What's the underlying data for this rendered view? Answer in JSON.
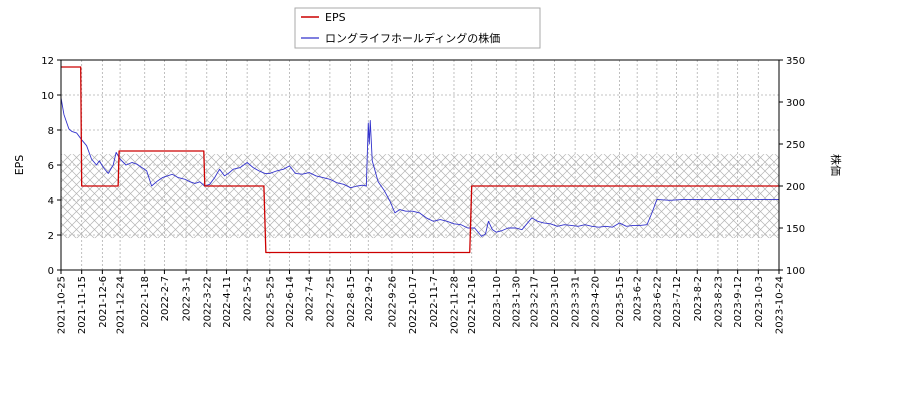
{
  "chart_data": {
    "type": "line",
    "title": "",
    "xlabel": "",
    "ylabel_left": "EPS",
    "ylabel_right": "株価",
    "ylim_left": [
      0,
      12
    ],
    "ylim_right": [
      100,
      350
    ],
    "yticks_left": [
      0,
      2,
      4,
      6,
      8,
      10,
      12
    ],
    "yticks_right": [
      100,
      150,
      200,
      250,
      300,
      350
    ],
    "xlim": [
      "2021-10-25",
      "2023-10-24"
    ],
    "x_tick_labels": [
      "2021-10-25",
      "2021-11-15",
      "2021-12-6",
      "2021-12-24",
      "2022-1-18",
      "2022-2-7",
      "2022-3-1",
      "2022-3-22",
      "2022-4-11",
      "2022-5-2",
      "2022-5-25",
      "2022-6-14",
      "2022-7-4",
      "2022-7-25",
      "2022-8-15",
      "2022-9-2",
      "2022-9-26",
      "2022-10-17",
      "2022-11-7",
      "2022-11-28",
      "2022-12-16",
      "2023-1-10",
      "2023-1-30",
      "2023-2-17",
      "2023-3-10",
      "2023-3-31",
      "2023-4-20",
      "2023-5-15",
      "2023-6-2",
      "2023-6-22",
      "2023-7-12",
      "2023-8-2",
      "2023-8-23",
      "2023-9-12",
      "2023-10-3",
      "2023-10-24"
    ],
    "x_tick_dates": [
      "2021-10-25",
      "2021-11-15",
      "2021-12-06",
      "2021-12-24",
      "2022-01-18",
      "2022-02-07",
      "2022-03-01",
      "2022-03-22",
      "2022-04-11",
      "2022-05-02",
      "2022-05-25",
      "2022-06-14",
      "2022-07-04",
      "2022-07-25",
      "2022-08-15",
      "2022-09-02",
      "2022-09-26",
      "2022-10-17",
      "2022-11-07",
      "2022-11-28",
      "2022-12-16",
      "2023-01-10",
      "2023-01-30",
      "2023-02-17",
      "2023-03-10",
      "2023-03-31",
      "2023-04-20",
      "2023-05-15",
      "2023-06-02",
      "2023-06-22",
      "2023-07-12",
      "2023-08-02",
      "2023-08-23",
      "2023-09-12",
      "2023-10-03",
      "2023-10-24"
    ],
    "grid": true,
    "legend_position": "top-center",
    "hatch_band_right": [
      138,
      238
    ],
    "series": [
      {
        "name": "EPS",
        "axis": "left",
        "color": "#cc0000",
        "step": true,
        "points": [
          [
            "2021-10-25",
            11.6
          ],
          [
            "2021-11-14",
            11.6
          ],
          [
            "2021-11-15",
            4.8
          ],
          [
            "2021-12-22",
            4.8
          ],
          [
            "2021-12-23",
            6.8
          ],
          [
            "2022-03-19",
            6.8
          ],
          [
            "2022-03-20",
            4.8
          ],
          [
            "2022-05-19",
            4.8
          ],
          [
            "2022-05-21",
            1.0
          ],
          [
            "2022-12-14",
            1.0
          ],
          [
            "2022-12-16",
            4.8
          ],
          [
            "2023-10-24",
            4.8
          ]
        ]
      },
      {
        "name": "ロングライフホールディングの株価",
        "axis": "right",
        "color": "#3333cc",
        "points": [
          [
            "2021-10-25",
            305
          ],
          [
            "2021-10-28",
            285
          ],
          [
            "2021-11-02",
            268
          ],
          [
            "2021-11-05",
            265
          ],
          [
            "2021-11-10",
            263
          ],
          [
            "2021-11-15",
            255
          ],
          [
            "2021-11-20",
            248
          ],
          [
            "2021-11-25",
            232
          ],
          [
            "2021-11-30",
            225
          ],
          [
            "2021-12-03",
            230
          ],
          [
            "2021-12-07",
            222
          ],
          [
            "2021-12-12",
            215
          ],
          [
            "2021-12-17",
            225
          ],
          [
            "2021-12-20",
            240
          ],
          [
            "2021-12-24",
            232
          ],
          [
            "2021-12-30",
            225
          ],
          [
            "2022-01-05",
            228
          ],
          [
            "2022-01-10",
            226
          ],
          [
            "2022-01-15",
            222
          ],
          [
            "2022-01-20",
            218
          ],
          [
            "2022-01-25",
            200
          ],
          [
            "2022-01-31",
            206
          ],
          [
            "2022-02-05",
            210
          ],
          [
            "2022-02-10",
            212
          ],
          [
            "2022-02-15",
            214
          ],
          [
            "2022-02-21",
            210
          ],
          [
            "2022-02-28",
            208
          ],
          [
            "2022-03-05",
            205
          ],
          [
            "2022-03-10",
            203
          ],
          [
            "2022-03-15",
            205
          ],
          [
            "2022-03-20",
            200
          ],
          [
            "2022-03-25",
            202
          ],
          [
            "2022-03-30",
            210
          ],
          [
            "2022-04-04",
            220
          ],
          [
            "2022-04-09",
            212
          ],
          [
            "2022-04-13",
            215
          ],
          [
            "2022-04-18",
            220
          ],
          [
            "2022-04-25",
            222
          ],
          [
            "2022-05-02",
            228
          ],
          [
            "2022-05-08",
            222
          ],
          [
            "2022-05-14",
            218
          ],
          [
            "2022-05-20",
            215
          ],
          [
            "2022-05-25",
            215
          ],
          [
            "2022-06-01",
            218
          ],
          [
            "2022-06-08",
            220
          ],
          [
            "2022-06-14",
            224
          ],
          [
            "2022-06-20",
            215
          ],
          [
            "2022-06-27",
            214
          ],
          [
            "2022-07-04",
            216
          ],
          [
            "2022-07-11",
            212
          ],
          [
            "2022-07-18",
            210
          ],
          [
            "2022-07-25",
            208
          ],
          [
            "2022-08-01",
            204
          ],
          [
            "2022-08-08",
            202
          ],
          [
            "2022-08-15",
            198
          ],
          [
            "2022-08-22",
            200
          ],
          [
            "2022-08-27",
            201
          ],
          [
            "2022-08-31",
            200
          ],
          [
            "2022-09-02",
            275
          ],
          [
            "2022-09-03",
            250
          ],
          [
            "2022-09-04",
            278
          ],
          [
            "2022-09-06",
            230
          ],
          [
            "2022-09-12",
            205
          ],
          [
            "2022-09-18",
            195
          ],
          [
            "2022-09-24",
            182
          ],
          [
            "2022-09-29",
            168
          ],
          [
            "2022-10-04",
            172
          ],
          [
            "2022-10-10",
            170
          ],
          [
            "2022-10-17",
            170
          ],
          [
            "2022-10-24",
            168
          ],
          [
            "2022-10-31",
            162
          ],
          [
            "2022-11-07",
            158
          ],
          [
            "2022-11-14",
            160
          ],
          [
            "2022-11-21",
            158
          ],
          [
            "2022-11-28",
            155
          ],
          [
            "2022-12-05",
            154
          ],
          [
            "2022-12-12",
            150
          ],
          [
            "2022-12-19",
            150
          ],
          [
            "2022-12-26",
            140
          ],
          [
            "2022-12-30",
            143
          ],
          [
            "2023-01-02",
            158
          ],
          [
            "2023-01-06",
            148
          ],
          [
            "2023-01-10",
            145
          ],
          [
            "2023-01-16",
            147
          ],
          [
            "2023-01-22",
            150
          ],
          [
            "2023-01-30",
            150
          ],
          [
            "2023-02-05",
            148
          ],
          [
            "2023-02-10",
            155
          ],
          [
            "2023-02-15",
            162
          ],
          [
            "2023-02-21",
            158
          ],
          [
            "2023-02-27",
            156
          ],
          [
            "2023-03-06",
            155
          ],
          [
            "2023-03-13",
            152
          ],
          [
            "2023-03-20",
            154
          ],
          [
            "2023-03-27",
            153
          ],
          [
            "2023-04-03",
            152
          ],
          [
            "2023-04-10",
            154
          ],
          [
            "2023-04-17",
            152
          ],
          [
            "2023-04-24",
            151
          ],
          [
            "2023-05-01",
            152
          ],
          [
            "2023-05-08",
            151
          ],
          [
            "2023-05-15",
            156
          ],
          [
            "2023-05-22",
            152
          ],
          [
            "2023-05-29",
            153
          ],
          [
            "2023-06-05",
            153
          ],
          [
            "2023-06-12",
            154
          ],
          [
            "2023-06-17",
            168
          ],
          [
            "2023-06-22",
            184
          ],
          [
            "2023-07-05",
            183
          ],
          [
            "2023-07-19",
            184
          ],
          [
            "2023-08-02",
            184
          ],
          [
            "2023-08-16",
            184
          ],
          [
            "2023-08-30",
            184
          ],
          [
            "2023-09-13",
            184
          ],
          [
            "2023-09-27",
            184
          ],
          [
            "2023-10-11",
            184
          ],
          [
            "2023-10-24",
            184
          ]
        ]
      }
    ]
  }
}
